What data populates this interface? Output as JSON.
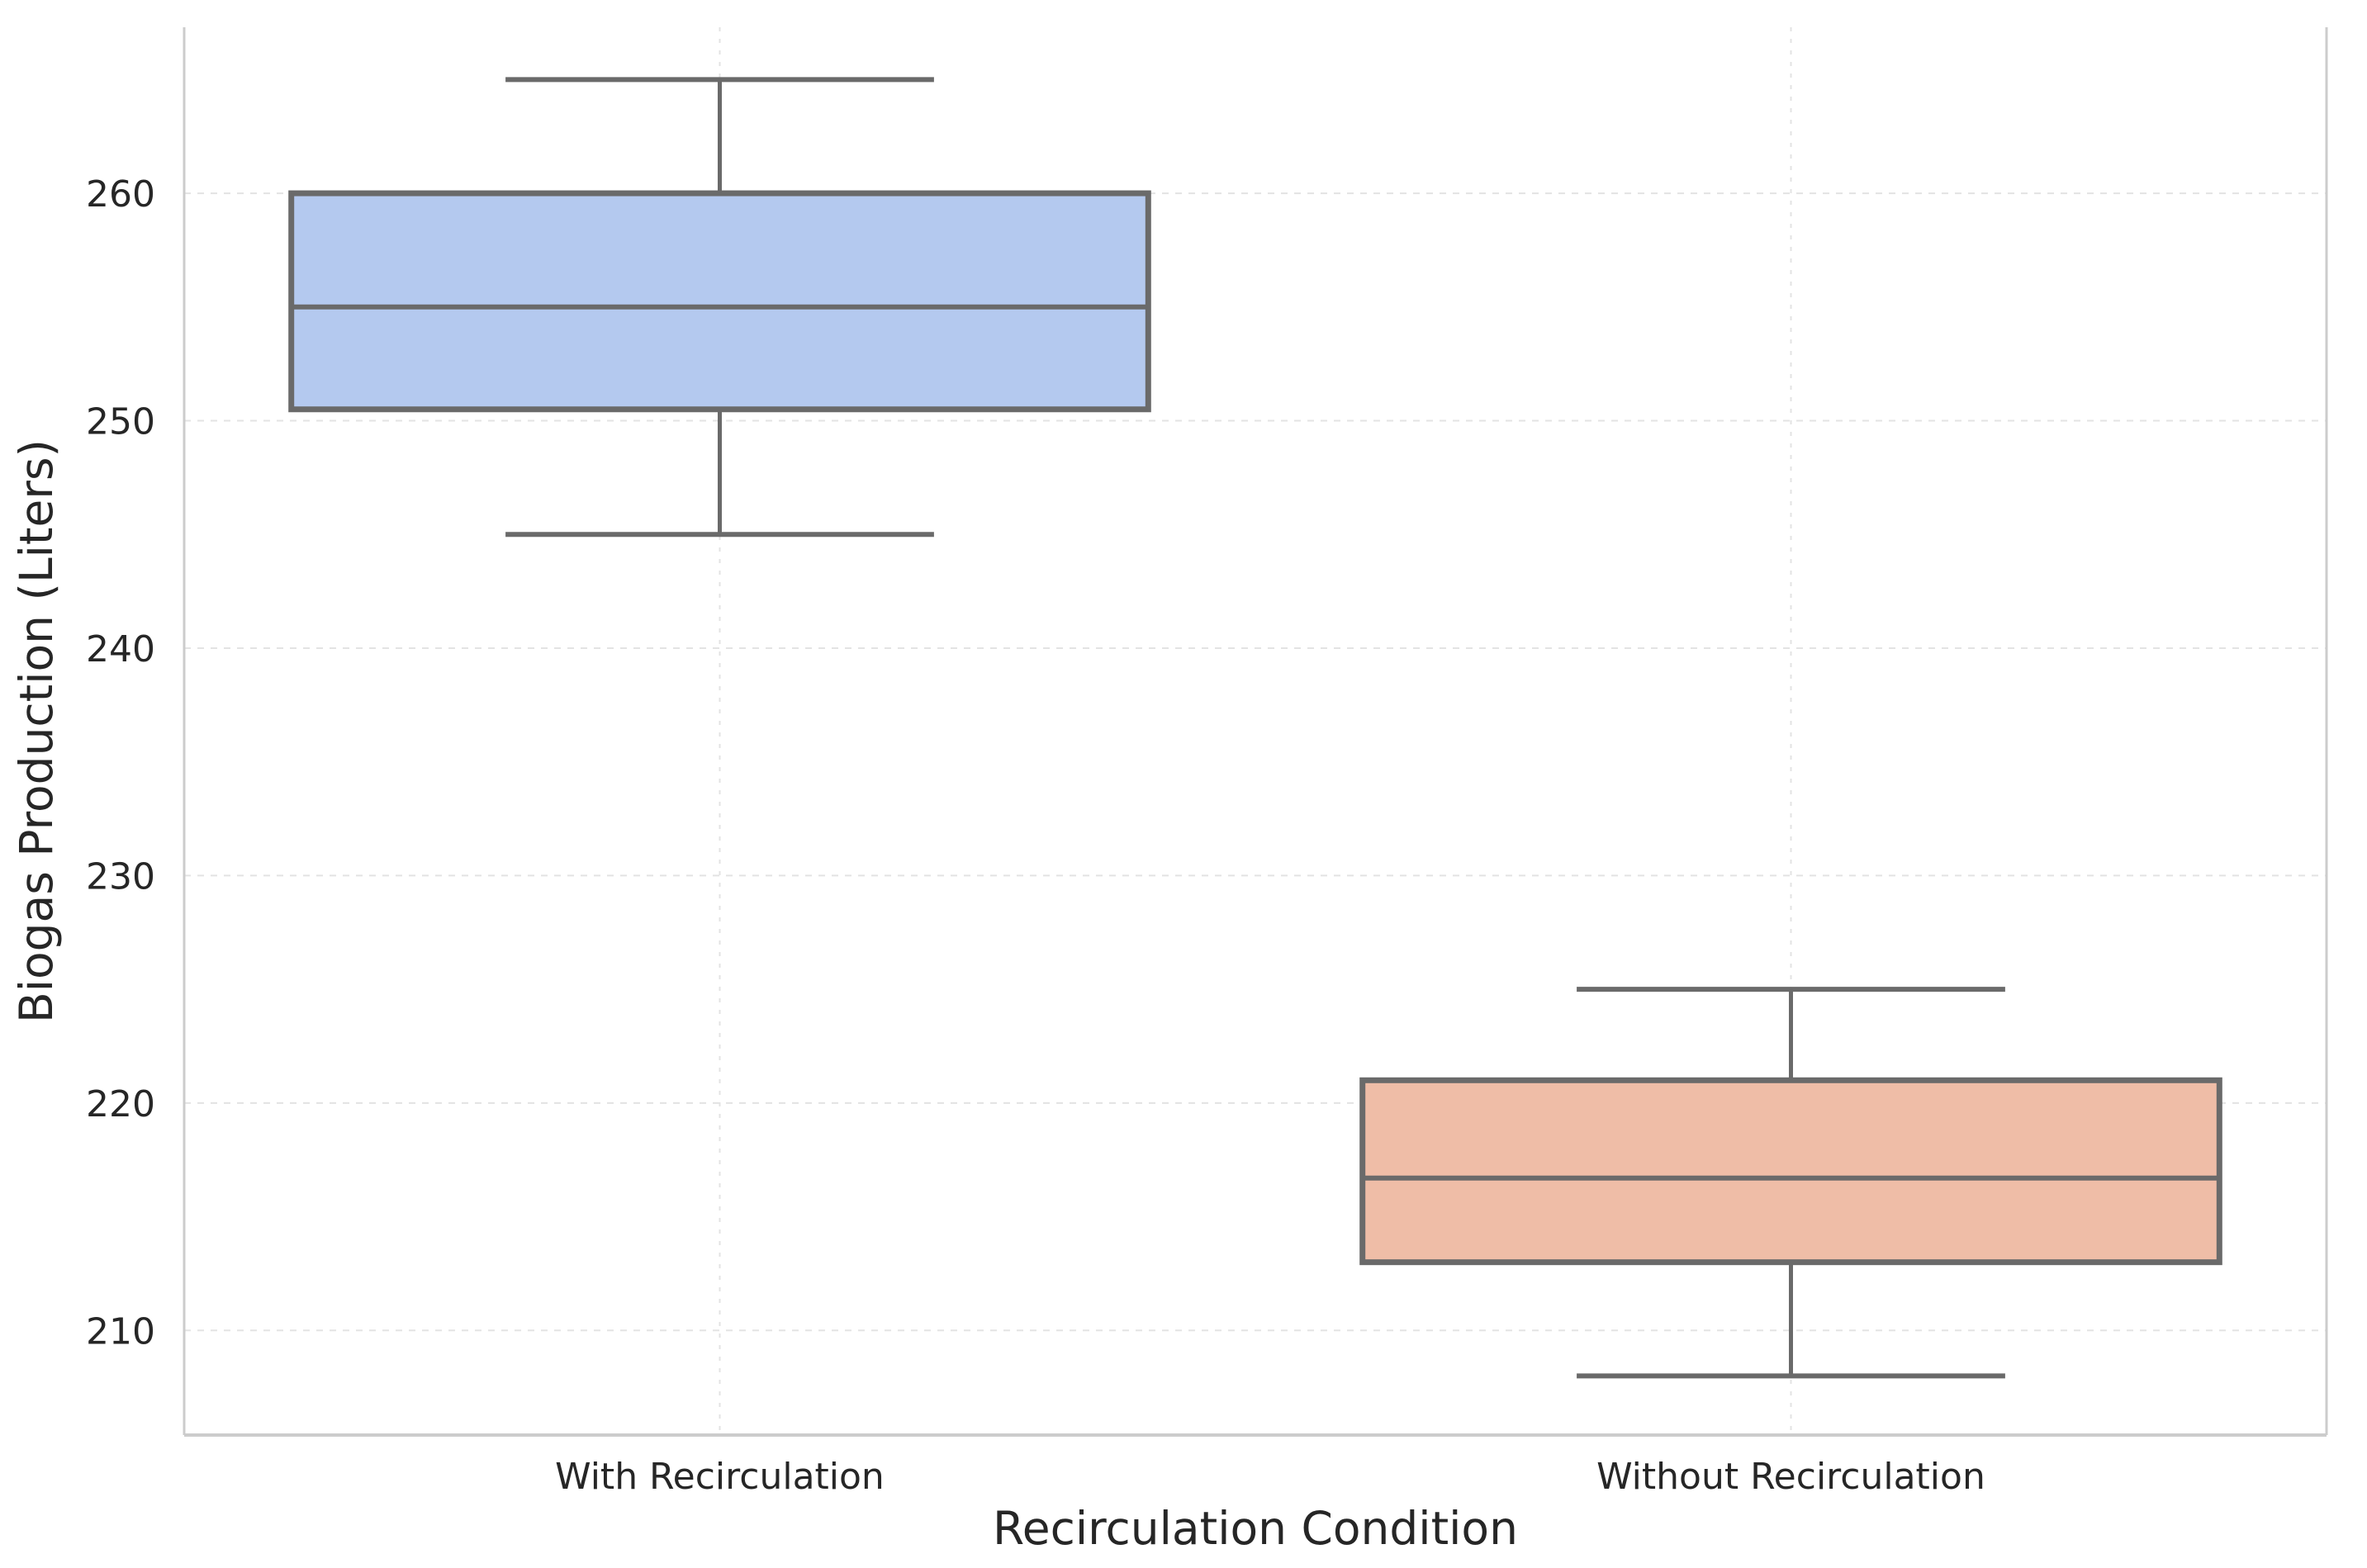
{
  "figure": {
    "background": "#ffffff"
  },
  "chart_data": {
    "type": "box",
    "title": "",
    "xlabel": "Recirculation Condition",
    "ylabel": "Biogas Production (Liters)",
    "categories": [
      "With Recirculation",
      "Without Recirculation"
    ],
    "yticks": [
      210,
      220,
      230,
      240,
      250,
      260
    ],
    "ylim": [
      205.4,
      267.3
    ],
    "grid": {
      "horizontal": true,
      "vertical": true,
      "linestyle": "dashed",
      "color": "#e3e3e3"
    },
    "legend_position": "none",
    "series": [
      {
        "name": "With Recirculation",
        "whisker_low": 245,
        "q1": 250.5,
        "median": 255,
        "q3": 260,
        "whisker_high": 265,
        "outliers": [],
        "fill_color": "#b4c9ef"
      },
      {
        "name": "Without Recirculation",
        "whisker_low": 208,
        "q1": 213,
        "median": 216.7,
        "q3": 221,
        "whisker_high": 225,
        "outliers": [],
        "fill_color": "#efbda7"
      }
    ],
    "box_line_color": "#6a6a6a",
    "spine_color": "#cccccc",
    "text_color": "#262626"
  }
}
